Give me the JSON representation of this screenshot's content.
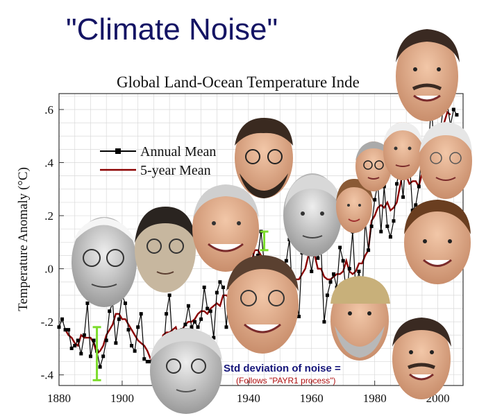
{
  "slide": {
    "title": "\"Climate Noise\""
  },
  "chart_data": {
    "type": "line",
    "title": "Global Land-Ocean Temperature Inde",
    "xlabel": "",
    "ylabel": "Temperature Anomaly (°C)",
    "xlim": [
      1880,
      2008
    ],
    "ylim": [
      -0.44,
      0.66
    ],
    "xticks": [
      1880,
      1900,
      1920,
      1940,
      1960,
      1980,
      2000
    ],
    "xtick_labels": [
      "1880",
      "1900",
      "",
      "1940",
      "1960",
      "1980",
      "2000"
    ],
    "yticks": [
      -0.4,
      -0.2,
      0.0,
      0.2,
      0.4,
      0.6
    ],
    "ytick_labels": [
      "-.4",
      "-.2",
      ".0",
      ".2",
      ".4",
      ".6"
    ],
    "grid": true,
    "legend_position": "upper-left",
    "x": [
      1880,
      1881,
      1882,
      1883,
      1884,
      1885,
      1886,
      1887,
      1888,
      1889,
      1890,
      1891,
      1892,
      1893,
      1894,
      1895,
      1896,
      1897,
      1898,
      1899,
      1900,
      1901,
      1902,
      1903,
      1904,
      1905,
      1906,
      1907,
      1908,
      1909,
      1910,
      1911,
      1912,
      1913,
      1914,
      1915,
      1916,
      1917,
      1918,
      1919,
      1920,
      1921,
      1922,
      1923,
      1924,
      1925,
      1926,
      1927,
      1928,
      1929,
      1930,
      1931,
      1932,
      1933,
      1934,
      1935,
      1936,
      1937,
      1938,
      1939,
      1940,
      1941,
      1942,
      1943,
      1944,
      1945,
      1946,
      1947,
      1948,
      1949,
      1950,
      1951,
      1952,
      1953,
      1954,
      1955,
      1956,
      1957,
      1958,
      1959,
      1960,
      1961,
      1962,
      1963,
      1964,
      1965,
      1966,
      1967,
      1968,
      1969,
      1970,
      1971,
      1972,
      1973,
      1974,
      1975,
      1976,
      1977,
      1978,
      1979,
      1980,
      1981,
      1982,
      1983,
      1984,
      1985,
      1986,
      1987,
      1988,
      1989,
      1990,
      1991,
      1992,
      1993,
      1994,
      1995,
      1996,
      1997,
      1998,
      1999,
      2000,
      2001,
      2002,
      2003,
      2004,
      2005,
      2006
    ],
    "series": [
      {
        "name": "Annual Mean",
        "color": "#000000",
        "values": [
          -0.22,
          -0.19,
          -0.23,
          -0.23,
          -0.3,
          -0.29,
          -0.27,
          -0.32,
          -0.25,
          -0.13,
          -0.33,
          -0.27,
          -0.31,
          -0.37,
          -0.33,
          -0.27,
          -0.16,
          -0.13,
          -0.28,
          -0.19,
          -0.1,
          -0.13,
          -0.23,
          -0.29,
          -0.31,
          -0.22,
          -0.17,
          -0.34,
          -0.35,
          -0.35,
          -0.34,
          -0.35,
          -0.31,
          -0.33,
          -0.17,
          -0.1,
          -0.29,
          -0.33,
          -0.25,
          -0.23,
          -0.21,
          -0.14,
          -0.22,
          -0.2,
          -0.22,
          -0.19,
          -0.07,
          -0.15,
          -0.16,
          -0.26,
          -0.09,
          -0.05,
          -0.07,
          -0.22,
          -0.07,
          -0.09,
          -0.1,
          0.02,
          0.02,
          -0.01,
          0.06,
          0.07,
          0.04,
          0.05,
          0.14,
          0.02,
          -0.04,
          0.03,
          -0.04,
          -0.04,
          -0.14,
          -0.02,
          0.03,
          0.11,
          -0.11,
          -0.1,
          -0.18,
          0.06,
          0.08,
          0.06,
          -0.01,
          0.08,
          0.04,
          0.08,
          -0.2,
          -0.1,
          -0.05,
          -0.02,
          -0.07,
          0.08,
          0.03,
          -0.1,
          0.0,
          0.14,
          -0.08,
          -0.01,
          -0.11,
          0.18,
          0.07,
          0.16,
          0.26,
          0.32,
          0.14,
          0.31,
          0.16,
          0.12,
          0.18,
          0.32,
          0.39,
          0.27,
          0.45,
          0.41,
          0.22,
          0.24,
          0.31,
          0.45,
          0.35,
          0.46,
          0.62,
          0.4,
          0.42,
          0.54,
          0.63,
          0.62,
          0.54,
          0.6,
          0.58
        ]
      },
      {
        "name": "5-year Mean",
        "color": "#8b0000",
        "values": [
          null,
          null,
          -0.23,
          -0.25,
          -0.26,
          -0.28,
          -0.29,
          -0.25,
          -0.26,
          -0.26,
          -0.26,
          -0.28,
          -0.32,
          -0.31,
          -0.29,
          -0.25,
          -0.23,
          -0.21,
          -0.17,
          -0.17,
          -0.19,
          -0.19,
          -0.21,
          -0.23,
          -0.25,
          -0.27,
          -0.28,
          -0.29,
          -0.31,
          -0.34,
          -0.34,
          -0.34,
          -0.3,
          -0.25,
          -0.24,
          -0.24,
          -0.23,
          -0.22,
          -0.26,
          -0.23,
          -0.21,
          -0.2,
          -0.2,
          -0.19,
          -0.17,
          -0.16,
          -0.16,
          -0.17,
          -0.15,
          -0.14,
          -0.13,
          -0.14,
          -0.1,
          -0.1,
          -0.11,
          -0.08,
          -0.05,
          -0.03,
          0.0,
          0.03,
          0.04,
          0.03,
          0.07,
          0.07,
          0.05,
          0.04,
          0.04,
          0.0,
          -0.03,
          -0.04,
          -0.04,
          -0.01,
          -0.04,
          -0.01,
          -0.05,
          -0.04,
          -0.04,
          -0.02,
          0.0,
          0.05,
          0.05,
          0.05,
          0.0,
          0.0,
          -0.03,
          -0.04,
          -0.04,
          -0.03,
          -0.02,
          -0.02,
          -0.01,
          0.03,
          -0.01,
          -0.02,
          -0.01,
          0.02,
          0.02,
          0.05,
          0.07,
          0.18,
          0.2,
          0.23,
          0.24,
          0.23,
          0.25,
          0.22,
          0.23,
          0.25,
          0.31,
          0.37,
          0.35,
          0.32,
          0.33,
          0.33,
          0.31,
          0.36,
          0.44,
          0.41,
          0.44,
          0.49,
          0.49,
          0.53,
          0.55,
          0.59,
          0.58,
          null,
          null
        ]
      }
    ],
    "annotations": [
      {
        "text": "Std deviation of noise =",
        "color": "#16167a"
      },
      {
        "text": "(Follows \"PAYR1 process\")",
        "color": "#b01010"
      }
    ],
    "error_bars": [
      {
        "x": 1892,
        "low": -0.42,
        "high": -0.22,
        "color": "#7cdc2c"
      },
      {
        "x": 1945,
        "low": 0.07,
        "high": 0.14,
        "color": "#7cdc2c"
      }
    ]
  },
  "portraits": [
    {
      "name": "portrait-white-haired-elder"
    },
    {
      "name": "portrait-woman-short-black-hair"
    },
    {
      "name": "portrait-smiling-grey-haired-man"
    },
    {
      "name": "portrait-bearded-man-glasses"
    },
    {
      "name": "portrait-bald-elderly-man"
    },
    {
      "name": "portrait-blonde-woman"
    },
    {
      "name": "portrait-man-glasses-suit"
    },
    {
      "name": "portrait-man-white-hair"
    },
    {
      "name": "portrait-smiling-man-top-right"
    },
    {
      "name": "portrait-white-haired-man-glasses"
    },
    {
      "name": "portrait-young-man-brown-hair"
    },
    {
      "name": "portrait-laughing-man-glasses"
    },
    {
      "name": "portrait-bearded-man-cap"
    },
    {
      "name": "portrait-elderly-man-glasses-bottom"
    },
    {
      "name": "portrait-smiling-man-bottom-right"
    }
  ]
}
